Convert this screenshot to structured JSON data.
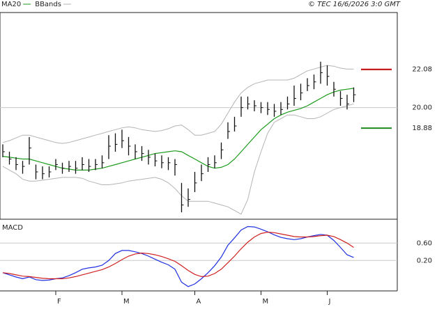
{
  "source": "© TEC 16/6/2026 3:0 GMT",
  "chart_data": [
    {
      "type": "ohlc",
      "high": [
        18.0,
        17.6,
        17.3,
        17.1,
        18.4,
        16.9,
        16.8,
        16.8,
        17.2,
        17.0,
        17.1,
        17.1,
        17.3,
        17.2,
        17.2,
        17.4,
        18.5,
        18.6,
        18.8,
        18.4,
        18.0,
        17.9,
        17.7,
        17.5,
        17.4,
        17.3,
        17.2,
        15.9,
        15.6,
        16.5,
        16.9,
        17.3,
        17.4,
        18.1,
        19.2,
        19.5,
        20.6,
        20.6,
        20.4,
        20.3,
        20.3,
        20.2,
        20.3,
        20.6,
        21.2,
        21.3,
        21.6,
        21.8,
        22.5,
        22.3,
        21.4,
        20.9,
        20.7,
        21.1
      ],
      "low": [
        17.3,
        16.9,
        16.6,
        16.4,
        16.9,
        16.1,
        16.1,
        16.2,
        16.6,
        16.4,
        16.5,
        16.4,
        16.6,
        16.5,
        16.6,
        16.7,
        17.2,
        17.6,
        17.8,
        17.4,
        17.2,
        17.1,
        16.9,
        16.8,
        16.7,
        16.6,
        16.3,
        14.3,
        14.6,
        15.4,
        16.0,
        16.5,
        16.7,
        17.2,
        18.3,
        18.7,
        19.5,
        19.9,
        19.8,
        19.7,
        19.6,
        19.5,
        19.6,
        19.9,
        20.1,
        20.4,
        20.9,
        21.0,
        21.3,
        21.2,
        20.6,
        20.1,
        19.9,
        20.3
      ],
      "close": [
        17.6,
        17.2,
        16.9,
        16.8,
        17.8,
        16.5,
        16.4,
        16.5,
        16.9,
        16.7,
        16.8,
        16.7,
        16.9,
        16.8,
        16.9,
        17.0,
        17.9,
        18.0,
        18.2,
        17.9,
        17.6,
        17.5,
        17.3,
        17.1,
        17.0,
        17.0,
        16.9,
        14.7,
        15.0,
        15.9,
        16.4,
        16.9,
        17.0,
        17.7,
        18.7,
        19.0,
        20.0,
        20.2,
        20.1,
        20.0,
        19.9,
        19.8,
        19.9,
        20.2,
        20.5,
        20.8,
        21.2,
        21.4,
        21.9,
        21.7,
        21.0,
        20.5,
        20.2,
        20.7
      ],
      "bar_color": "#111111",
      "series": [
        {
          "name": "MA20",
          "color": "#1c9a1c",
          "values": [
            17.35,
            17.3,
            17.25,
            17.2,
            17.2,
            17.1,
            17.0,
            16.9,
            16.8,
            16.7,
            16.65,
            16.6,
            16.6,
            16.6,
            16.65,
            16.7,
            16.8,
            16.9,
            17.0,
            17.1,
            17.2,
            17.3,
            17.4,
            17.5,
            17.55,
            17.6,
            17.65,
            17.6,
            17.4,
            17.2,
            17.0,
            16.8,
            16.7,
            16.75,
            16.9,
            17.2,
            17.6,
            18.0,
            18.4,
            18.8,
            19.1,
            19.4,
            19.6,
            19.75,
            19.85,
            19.95,
            20.1,
            20.3,
            20.5,
            20.7,
            20.85,
            20.95,
            21.0,
            21.05
          ]
        },
        {
          "name": "BBands",
          "color": "#b4b4b4",
          "upper": [
            18.1,
            18.2,
            18.35,
            18.5,
            18.5,
            18.4,
            18.3,
            18.2,
            18.1,
            18.05,
            18.1,
            18.2,
            18.3,
            18.4,
            18.5,
            18.6,
            18.7,
            18.8,
            18.9,
            18.95,
            18.9,
            18.8,
            18.75,
            18.7,
            18.75,
            18.85,
            19.0,
            19.05,
            18.8,
            18.5,
            18.5,
            18.6,
            18.7,
            19.1,
            19.7,
            20.3,
            20.8,
            21.1,
            21.3,
            21.4,
            21.5,
            21.5,
            21.5,
            21.5,
            21.6,
            21.8,
            22.0,
            22.1,
            22.2,
            22.3,
            22.25,
            22.15,
            22.1,
            22.1
          ],
          "lower": [
            16.8,
            16.6,
            16.4,
            16.1,
            16.0,
            16.0,
            16.05,
            16.1,
            16.15,
            16.2,
            16.2,
            16.2,
            16.15,
            16.0,
            15.9,
            15.8,
            15.8,
            15.85,
            15.9,
            16.0,
            16.05,
            16.1,
            16.15,
            16.2,
            16.1,
            15.9,
            15.6,
            15.2,
            14.9,
            14.9,
            14.9,
            14.9,
            14.8,
            14.7,
            14.6,
            14.4,
            14.2,
            15.0,
            16.5,
            17.6,
            18.6,
            19.2,
            19.4,
            19.6,
            19.6,
            19.5,
            19.4,
            19.4,
            19.5,
            19.7,
            19.9,
            20.0,
            20.1,
            20.2
          ]
        }
      ],
      "levels": [
        {
          "value": 22.08,
          "color": "#c00000"
        },
        {
          "value": 18.88,
          "color": "#1c8a1c"
        }
      ],
      "ylim": [
        14,
        25.1
      ],
      "yticks": [
        {
          "value": 20,
          "label": "20.00"
        }
      ],
      "grid": true
    },
    {
      "type": "line",
      "title": "MACD",
      "categories": [
        null,
        null,
        null,
        null,
        null,
        null,
        null,
        null,
        "F",
        null,
        null,
        null,
        null,
        null,
        null,
        null,
        null,
        null,
        "M",
        null,
        null,
        null,
        null,
        null,
        null,
        null,
        null,
        null,
        null,
        "A",
        null,
        null,
        null,
        null,
        null,
        null,
        null,
        null,
        null,
        "M",
        null,
        null,
        null,
        null,
        null,
        null,
        null,
        null,
        null,
        "J",
        null,
        null,
        null,
        null
      ],
      "series": [
        {
          "color": "#2030e0",
          "values": [
            -0.08,
            -0.13,
            -0.18,
            -0.22,
            -0.18,
            -0.24,
            -0.26,
            -0.25,
            -0.22,
            -0.2,
            -0.15,
            -0.08,
            0.0,
            0.03,
            0.05,
            0.09,
            0.2,
            0.36,
            0.43,
            0.43,
            0.4,
            0.36,
            0.3,
            0.23,
            0.16,
            0.1,
            0.0,
            -0.3,
            -0.4,
            -0.34,
            -0.22,
            -0.08,
            0.08,
            0.28,
            0.55,
            0.72,
            0.9,
            0.98,
            0.97,
            0.92,
            0.86,
            0.79,
            0.73,
            0.7,
            0.68,
            0.7,
            0.74,
            0.77,
            0.8,
            0.78,
            0.66,
            0.5,
            0.33,
            0.27
          ]
        },
        {
          "color": "#d02020",
          "values": [
            -0.08,
            -0.1,
            -0.13,
            -0.16,
            -0.17,
            -0.19,
            -0.21,
            -0.22,
            -0.22,
            -0.22,
            -0.2,
            -0.17,
            -0.13,
            -0.09,
            -0.05,
            -0.01,
            0.05,
            0.13,
            0.22,
            0.3,
            0.35,
            0.37,
            0.36,
            0.33,
            0.29,
            0.24,
            0.18,
            0.08,
            -0.03,
            -0.12,
            -0.17,
            -0.16,
            -0.1,
            0.0,
            0.15,
            0.3,
            0.47,
            0.62,
            0.74,
            0.82,
            0.85,
            0.84,
            0.81,
            0.78,
            0.75,
            0.74,
            0.74,
            0.75,
            0.77,
            0.78,
            0.75,
            0.68,
            0.6,
            0.5
          ]
        }
      ],
      "ylim": [
        -0.5,
        1.1
      ],
      "yticks": [
        {
          "value": 0.6,
          "label": "0.60"
        },
        {
          "value": 0.2,
          "label": "0.20"
        }
      ],
      "grid": true
    }
  ]
}
